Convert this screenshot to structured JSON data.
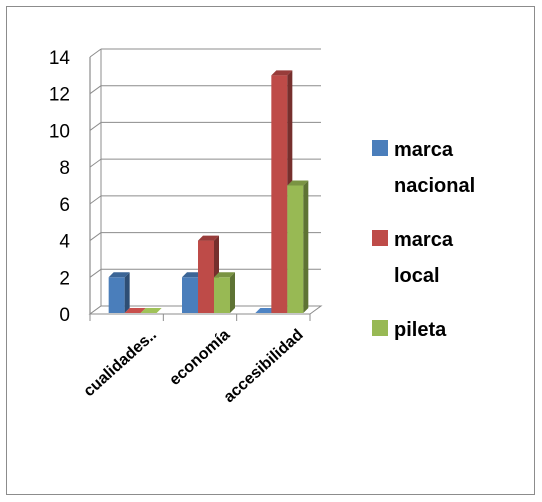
{
  "chart_data": {
    "type": "bar",
    "categories": [
      "cualidades..",
      "economía",
      "accesibilidad"
    ],
    "series": [
      {
        "name": "marca nacional",
        "values": [
          2,
          2,
          0
        ],
        "color": "#4a7ebb"
      },
      {
        "name": "marca local",
        "values": [
          0,
          4,
          13
        ],
        "color": "#be4b48"
      },
      {
        "name": "pileta",
        "values": [
          0,
          2,
          7
        ],
        "color": "#98b954"
      }
    ],
    "yticks": [
      "0",
      "2",
      "4",
      "6",
      "8",
      "10",
      "12",
      "14"
    ],
    "ylim": [
      0,
      14
    ],
    "grid": true,
    "legend_position": "right",
    "legend_lines": [
      [
        "marca",
        "nacional"
      ],
      [
        "marca",
        "local"
      ],
      [
        "pileta"
      ]
    ]
  }
}
